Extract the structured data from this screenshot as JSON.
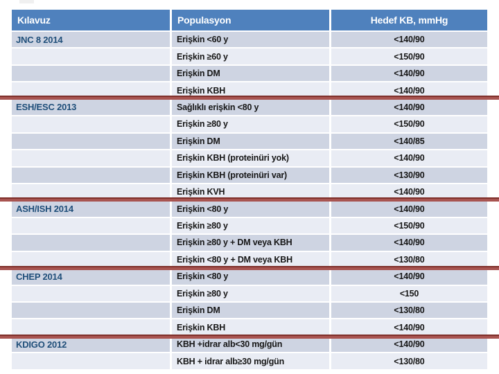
{
  "slide": {
    "description": "Hypertension guideline target blood pressure table (Turkish)"
  },
  "colors": {
    "header_bg": "#4f81bd",
    "band_dark": "#ced4e2",
    "band_light": "#e9ecf4",
    "guideline_text": "#1f4e79",
    "divider_red": "#a85450",
    "divider_red_edge": "#7e2f2a"
  },
  "table": {
    "header": {
      "guideline": "Kılavuz",
      "population": "Populasyon",
      "target": "Hedef KB, mmHg"
    },
    "rows": [
      {
        "guideline": "JNC 8 2014",
        "population": "Erişkin <60 y",
        "target": "<140/90"
      },
      {
        "guideline": "",
        "population": "Erişkin ≥60 y",
        "target": "<150/90"
      },
      {
        "guideline": "",
        "population": "Erişkin DM",
        "target": "<140/90"
      },
      {
        "guideline": "",
        "population": "Erişkin KBH",
        "target": "<140/90"
      },
      {
        "guideline": "ESH/ESC 2013",
        "population": "Sağlıklı erişkin <80 y",
        "target": "<140/90"
      },
      {
        "guideline": "",
        "population": "Erişkin ≥80 y",
        "target": "<150/90"
      },
      {
        "guideline": "",
        "population": "Erişkin DM",
        "target": "<140/85"
      },
      {
        "guideline": "",
        "population": "Erişkin KBH (proteinüri yok)",
        "target": "<140/90"
      },
      {
        "guideline": "",
        "population": "Erişkin KBH (proteinüri var)",
        "target": "<130/90"
      },
      {
        "guideline": "",
        "population": "Erişkin KVH",
        "target": "<140/90"
      },
      {
        "guideline": "ASH/ISH 2014",
        "population": "Erişkin <80 y",
        "target": "<140/90"
      },
      {
        "guideline": "",
        "population": "Erişkin ≥80 y",
        "target": "<150/90"
      },
      {
        "guideline": "",
        "population": "Erişkin ≥80 y + DM veya KBH",
        "target": "<140/90"
      },
      {
        "guideline": "",
        "population": "Erişkin <80 y + DM veya KBH",
        "target": "<130/80"
      },
      {
        "guideline": "CHEP 2014",
        "population": "Erişkin <80 y",
        "target": "<140/90"
      },
      {
        "guideline": "",
        "population": "Erişkin ≥80 y",
        "target": "<150"
      },
      {
        "guideline": "",
        "population": "Erişkin DM",
        "target": "<130/80"
      },
      {
        "guideline": "",
        "population": "Erişkin KBH",
        "target": "<140/90"
      },
      {
        "guideline": "KDIGO 2012",
        "population": "KBH +idrar alb<30 mg/gün",
        "target": "<140/90"
      },
      {
        "guideline": "",
        "population": "KBH + idrar alb≥30 mg/gün",
        "target": "<130/80"
      }
    ]
  }
}
